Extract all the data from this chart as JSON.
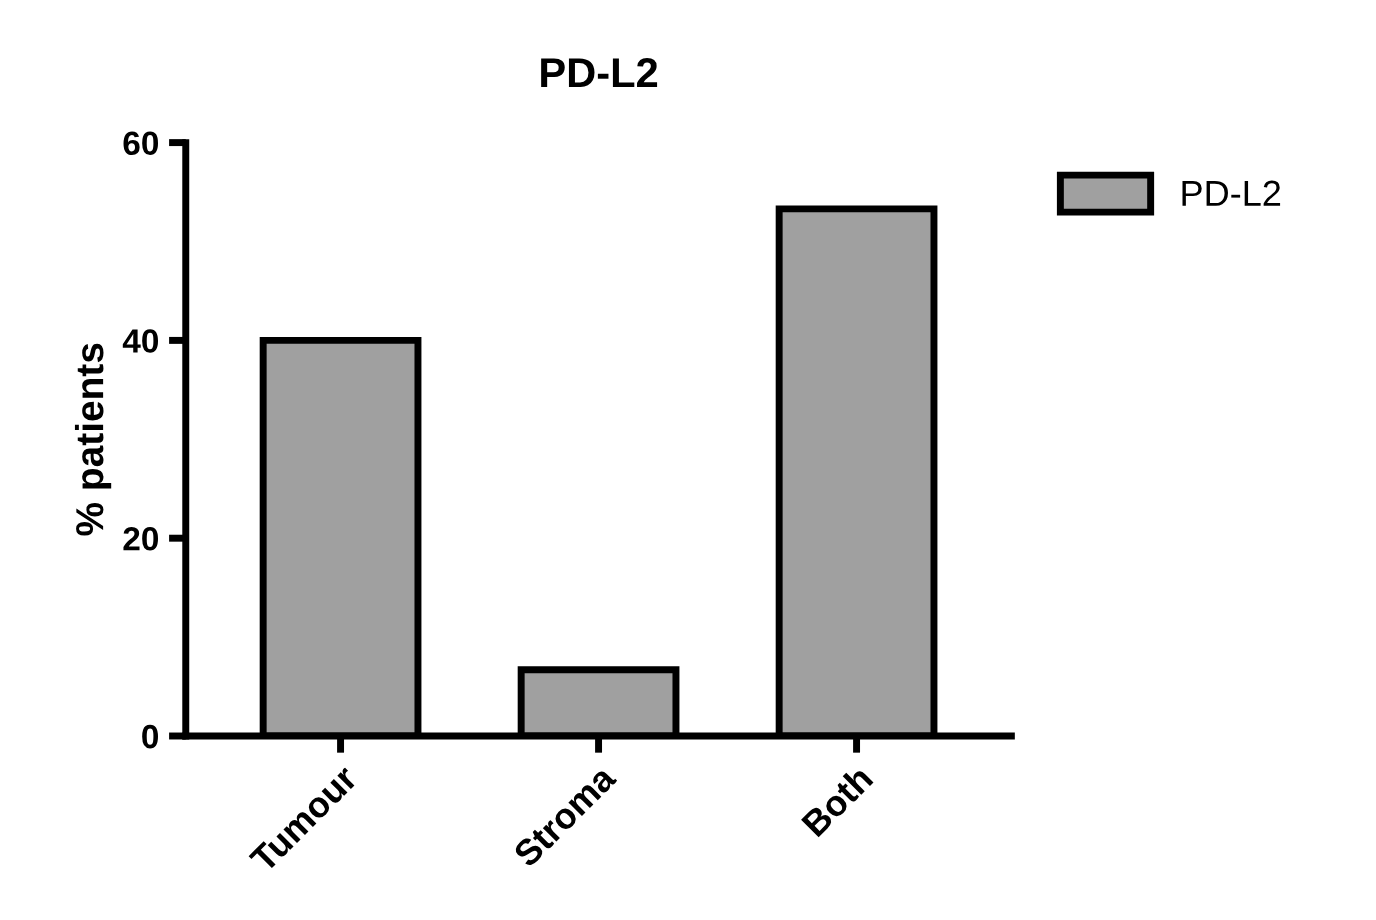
{
  "chart_data": {
    "type": "bar",
    "title": "PD-L2",
    "ylabel": "% patients",
    "categories": [
      "Tumour",
      "Stroma",
      "Both"
    ],
    "series": [
      {
        "name": "PD-L2",
        "color": "#a0a0a0",
        "values": [
          40,
          6.7,
          53.3
        ]
      }
    ],
    "ylim": [
      0,
      60
    ],
    "yticks": [
      0,
      20,
      40,
      60
    ],
    "grid": false,
    "legend": "top right"
  }
}
